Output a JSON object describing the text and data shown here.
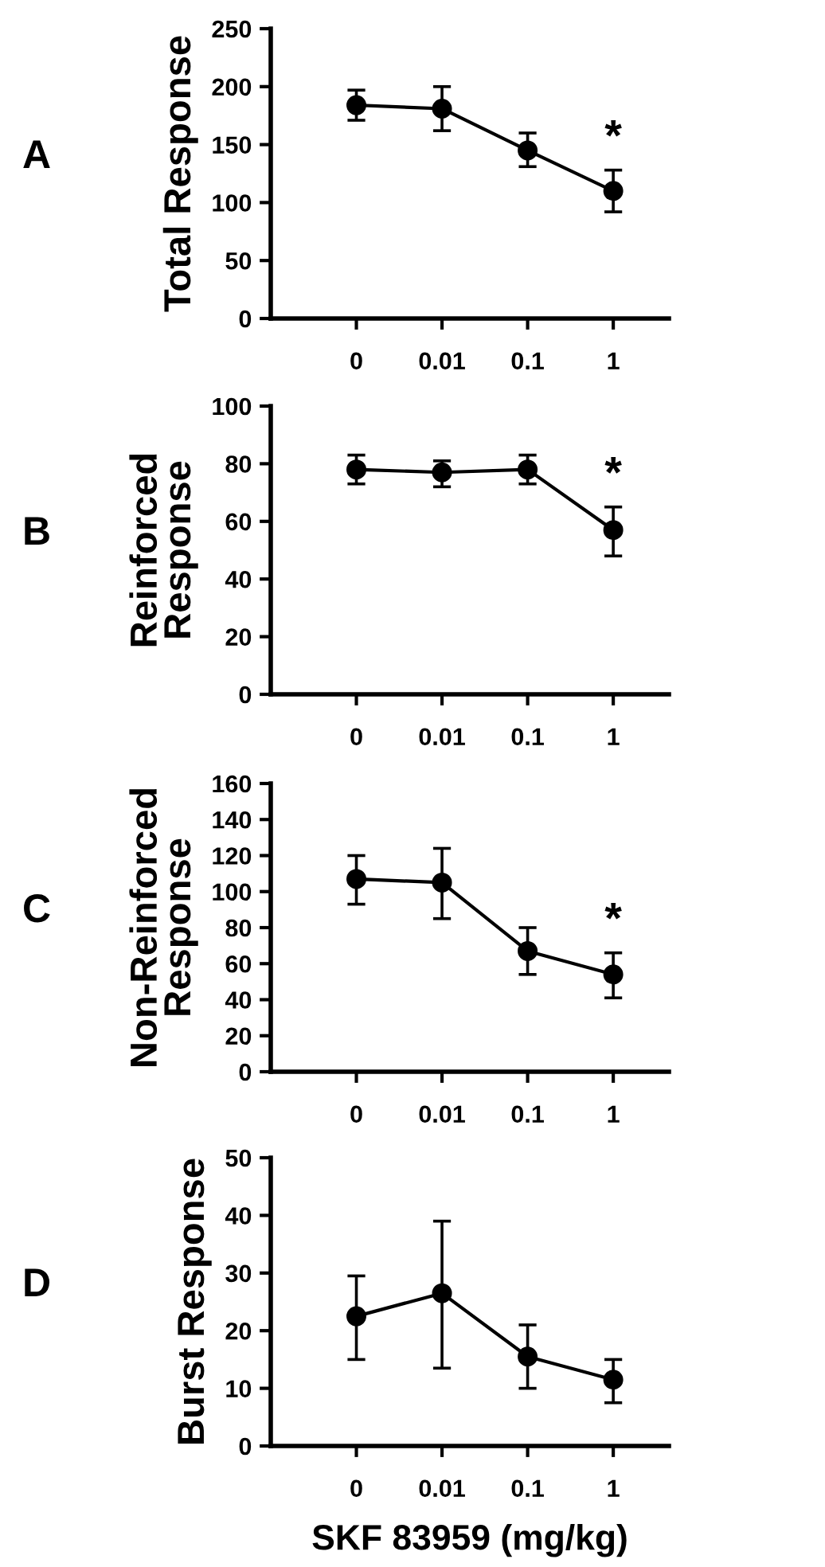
{
  "chart_data": [
    {
      "type": "line",
      "title": "A",
      "ylabel": "Total Response",
      "categories": [
        "0",
        "0.01",
        "0.1",
        "1"
      ],
      "series": [
        {
          "color": "#000000",
          "values": [
            184,
            181,
            145,
            110
          ],
          "errors": [
            [
              171,
              197
            ],
            [
              162,
              200
            ],
            [
              131,
              160
            ],
            [
              92,
              128
            ]
          ]
        }
      ],
      "ylim": [
        0,
        250
      ],
      "yticks": [
        0,
        50,
        100,
        150,
        200,
        250
      ],
      "marker": "circle",
      "line_style": "solid",
      "grid": false,
      "legend": false,
      "annotations": [
        "*"
      ]
    },
    {
      "type": "line",
      "title": "B",
      "ylabel": "Reinforced\nResponse",
      "categories": [
        "0",
        "0.01",
        "0.1",
        "1"
      ],
      "series": [
        {
          "color": "#000000",
          "values": [
            78,
            77,
            78,
            57
          ],
          "errors": [
            [
              73,
              83
            ],
            [
              72,
              81
            ],
            [
              73,
              83
            ],
            [
              48,
              65
            ]
          ]
        }
      ],
      "ylim": [
        0,
        100
      ],
      "yticks": [
        0,
        20,
        40,
        60,
        80,
        100
      ],
      "marker": "circle",
      "line_style": "solid",
      "grid": false,
      "legend": false,
      "annotations": [
        "*"
      ]
    },
    {
      "type": "line",
      "title": "C",
      "ylabel": "Non-Reinforced\nResponse",
      "categories": [
        "0",
        "0.01",
        "0.1",
        "1"
      ],
      "series": [
        {
          "color": "#000000",
          "values": [
            107,
            105,
            67,
            54
          ],
          "errors": [
            [
              93,
              120
            ],
            [
              85,
              124
            ],
            [
              54,
              80
            ],
            [
              41,
              66
            ]
          ]
        }
      ],
      "ylim": [
        0,
        160
      ],
      "yticks": [
        0,
        20,
        40,
        60,
        80,
        100,
        120,
        140,
        160
      ],
      "marker": "circle",
      "line_style": "solid",
      "grid": false,
      "legend": false,
      "annotations": [
        "*"
      ]
    },
    {
      "type": "line",
      "title": "D",
      "ylabel": "Burst Response",
      "xlabel": "SKF 83959 (mg/kg)",
      "categories": [
        "0",
        "0.01",
        "0.1",
        "1"
      ],
      "series": [
        {
          "color": "#000000",
          "values": [
            22.5,
            26.5,
            15.5,
            11.5
          ],
          "errors": [
            [
              15,
              29.5
            ],
            [
              13.5,
              39
            ],
            [
              10,
              21
            ],
            [
              7.5,
              15
            ]
          ]
        }
      ],
      "ylim": [
        0,
        50
      ],
      "yticks": [
        0,
        10,
        20,
        30,
        40,
        50
      ],
      "marker": "circle",
      "line_style": "solid",
      "grid": false,
      "legend": false
    }
  ]
}
